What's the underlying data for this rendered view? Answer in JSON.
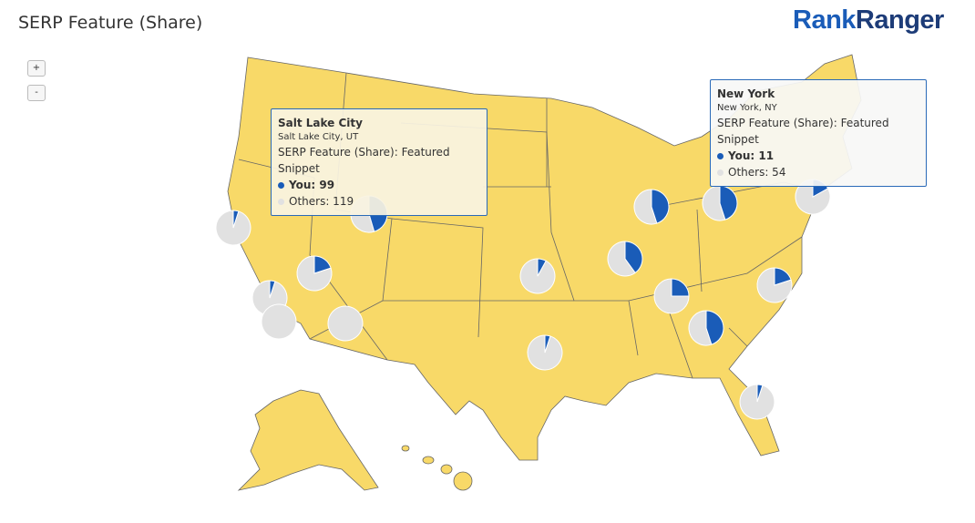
{
  "header": {
    "title": "SERP Feature (Share)",
    "logo_part1": "Rank",
    "logo_part2": "Ranger"
  },
  "zoom": {
    "in": "+",
    "out": "-"
  },
  "tooltips": [
    {
      "title": "Salt Lake City",
      "location": "Salt Lake City, UT",
      "series": "SERP Feature (Share): Featured Snippet",
      "you_label": "You: 99",
      "you": 99,
      "others_label": "Others: 119",
      "others": 119
    },
    {
      "title": "New York",
      "location": "New York, NY",
      "series": "SERP Feature (Share): Featured Snippet",
      "you_label": "You: 11",
      "you": 11,
      "others_label": "Others: 54",
      "others": 54
    }
  ],
  "pies": [
    {
      "you": 5,
      "others": 95
    },
    {
      "you": 20,
      "others": 80
    },
    {
      "you": 5,
      "others": 95
    },
    {
      "you": 0,
      "others": 100
    },
    {
      "you": 0,
      "others": 100
    },
    {
      "you": 8,
      "others": 92
    },
    {
      "you": 5,
      "others": 95
    },
    {
      "you": 40,
      "others": 60
    },
    {
      "you": 45,
      "others": 55
    },
    {
      "you": 25,
      "others": 75
    },
    {
      "you": 45,
      "others": 55
    },
    {
      "you": 45,
      "others": 55
    },
    {
      "you": 20,
      "others": 80
    },
    {
      "you": 5,
      "others": 95
    }
  ],
  "colors": {
    "you": "#1a5cb8",
    "others": "#e1e1e1",
    "land": "#f8d968"
  }
}
